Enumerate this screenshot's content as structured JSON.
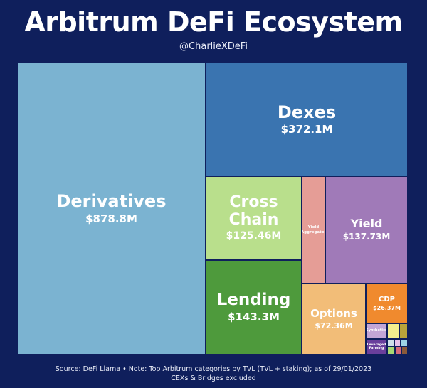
{
  "header": {
    "title": "Arbitrum DeFi Ecosystem",
    "handle": "@CharlieXDeFi"
  },
  "chart_data": {
    "type": "treemap",
    "title": "Arbitrum DeFi Ecosystem",
    "unit": "USD millions (TVL)",
    "items": [
      {
        "name": "Derivatives",
        "value": 878.8,
        "label": "$878.8M",
        "color": "#7bb3d1"
      },
      {
        "name": "Dexes",
        "value": 372.1,
        "label": "$372.1M",
        "color": "#3a74b0"
      },
      {
        "name": "Lending",
        "value": 143.3,
        "label": "$143.3M",
        "color": "#4e9a3c"
      },
      {
        "name": "Yield",
        "value": 137.73,
        "label": "$137.73M",
        "color": "#a07ab8"
      },
      {
        "name": "Cross Chain",
        "value": 125.46,
        "label": "$125.46M",
        "color": "#b9df8c"
      },
      {
        "name": "Options",
        "value": 72.36,
        "label": "$72.36M",
        "color": "#f2bd78"
      },
      {
        "name": "CDP",
        "value": 26.37,
        "label": "$26.37M",
        "color": "#f08a2e"
      },
      {
        "name": "Yield Aggregator",
        "value": null,
        "label": "",
        "color": "#e59d96"
      },
      {
        "name": "Synthetics",
        "value": null,
        "label": "",
        "color": "#c3a6d6"
      },
      {
        "name": "Leveraged Farming",
        "value": null,
        "label": "",
        "color": "#6a3f9c"
      }
    ],
    "minor_tile_colors": [
      "#f4ef8e",
      "#b9a33a",
      "#cfe0ea",
      "#e6c2ea",
      "#9dd3e6",
      "#a8d873",
      "#d66a7a",
      "#8a5a3a"
    ]
  },
  "footer": {
    "line1": "Source: DeFi Llama • Note: Top Arbitrum categories by TVL (TVL + staking); as of 29/01/2023",
    "line2": "CEXs & Bridges excluded"
  }
}
